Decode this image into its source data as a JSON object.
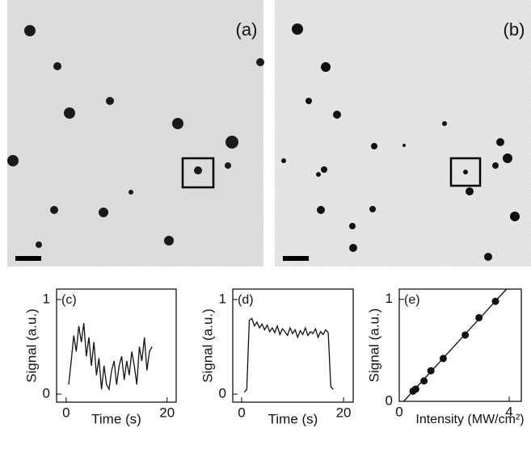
{
  "images": [
    {
      "label": "(a)"
    },
    {
      "label": "(b)"
    }
  ],
  "chart_data": [
    {
      "type": "line",
      "label": "(c)",
      "x_label": "Time (s)",
      "y_label": "Signal (a.u.)",
      "xlim": [
        -1.9,
        21.8
      ],
      "ylim": [
        -0.085,
        1.11
      ],
      "xticks": [
        0,
        20
      ],
      "yticks": [
        0,
        1
      ],
      "x": [
        0.5,
        1,
        1.5,
        2,
        2.5,
        3,
        3.5,
        4,
        4.5,
        5,
        5.5,
        6,
        6.5,
        7,
        7.5,
        8,
        8.5,
        9,
        9.5,
        10,
        10.5,
        11,
        11.5,
        12,
        12.5,
        13,
        13.5,
        14,
        14.5,
        15,
        15.5,
        16,
        16.5,
        17
      ],
      "values": [
        0.1,
        0.35,
        0.62,
        0.45,
        0.72,
        0.55,
        0.75,
        0.4,
        0.6,
        0.3,
        0.55,
        0.2,
        0.38,
        0.05,
        0.3,
        0.1,
        0.05,
        0.25,
        0.35,
        0.1,
        0.3,
        0.4,
        0.15,
        0.35,
        0.2,
        0.45,
        0.3,
        0.1,
        0.5,
        0.35,
        0.6,
        0.25,
        0.45,
        0.5
      ],
      "color": "#111111"
    },
    {
      "type": "line",
      "label": "(d)",
      "x_label": "Time (s)",
      "y_label": "Signal (a.u.)",
      "xlim": [
        -1.75,
        21.9
      ],
      "ylim": [
        -0.085,
        1.11
      ],
      "xticks": [
        0,
        20
      ],
      "yticks": [
        0,
        1
      ],
      "x": [
        0.5,
        1,
        1.5,
        2,
        2.5,
        3,
        3.5,
        4,
        4.5,
        5,
        5.5,
        6,
        6.5,
        7,
        7.5,
        8,
        8.5,
        9,
        9.5,
        10,
        10.5,
        11,
        11.5,
        12,
        12.5,
        13,
        13.5,
        14,
        14.5,
        15,
        15.5,
        16,
        16.5,
        17,
        17.5,
        18
      ],
      "values": [
        0.02,
        0.05,
        0.78,
        0.8,
        0.72,
        0.76,
        0.7,
        0.74,
        0.68,
        0.73,
        0.66,
        0.7,
        0.65,
        0.72,
        0.63,
        0.69,
        0.66,
        0.62,
        0.7,
        0.64,
        0.68,
        0.6,
        0.67,
        0.63,
        0.7,
        0.62,
        0.66,
        0.64,
        0.69,
        0.6,
        0.66,
        0.63,
        0.68,
        0.65,
        0.08,
        0.05
      ],
      "color": "#111111"
    },
    {
      "type": "scatter",
      "label": "(e)",
      "x_label": "Intensity (MW/cm²)",
      "y_label": "Signal (a.u.)",
      "xlim": [
        0,
        4.44
      ],
      "ylim": [
        0,
        1.1
      ],
      "xticks": [
        0,
        4
      ],
      "yticks": [
        0,
        1
      ],
      "x": [
        0.5,
        0.6,
        0.9,
        1.15,
        1.6,
        2.4,
        2.9,
        3.5
      ],
      "values": [
        0.1,
        0.12,
        0.2,
        0.3,
        0.42,
        0.65,
        0.82,
        0.98
      ],
      "fit_line": {
        "x": [
          0.16,
          3.9
        ],
        "values": [
          0,
          1.1
        ]
      },
      "color": "#111111"
    }
  ]
}
